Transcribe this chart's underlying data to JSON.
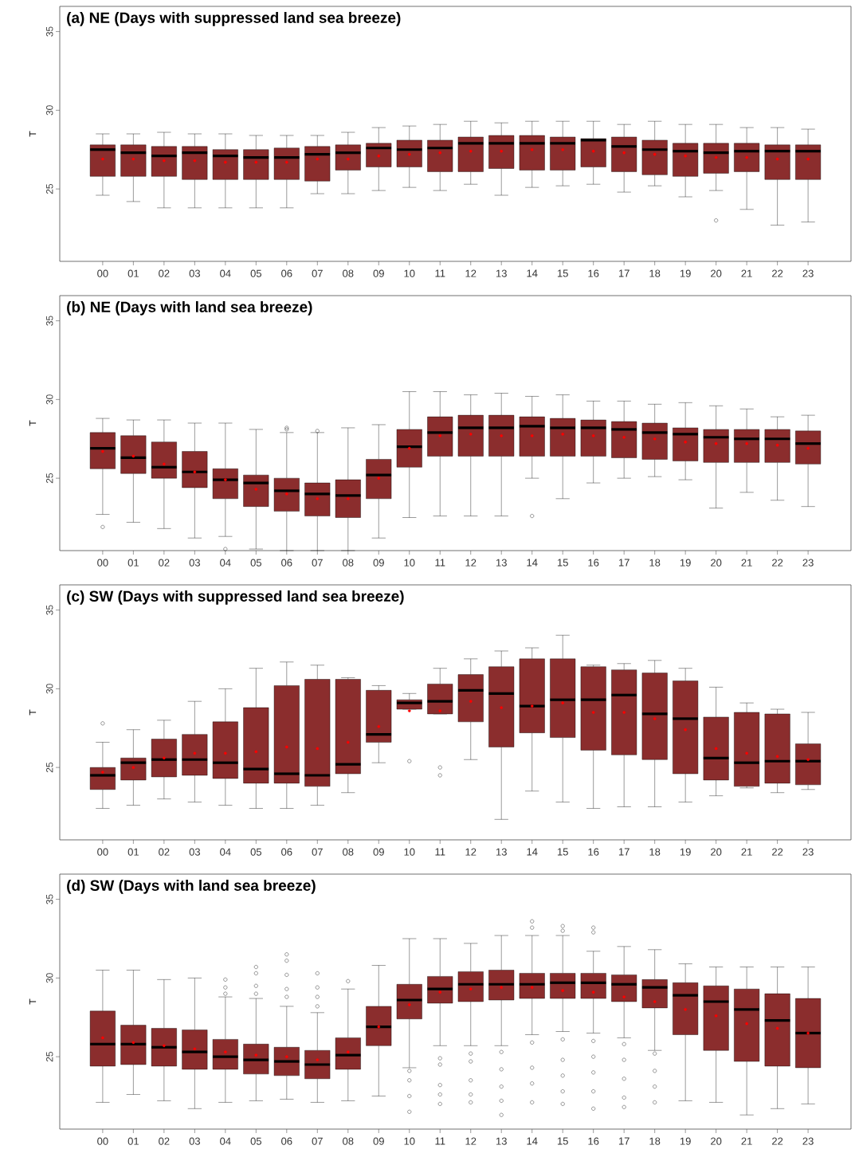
{
  "chart_data": [
    {
      "type": "box",
      "title": "(a) NE (Days with suppressed land sea breeze)",
      "ylabel": "T",
      "color": "#8b2d2d",
      "ylim": [
        20.4,
        36.6
      ],
      "yticks": [
        25,
        30,
        35
      ],
      "categories": [
        "00",
        "01",
        "02",
        "03",
        "04",
        "05",
        "06",
        "07",
        "08",
        "09",
        "10",
        "11",
        "12",
        "13",
        "14",
        "15",
        "16",
        "17",
        "18",
        "19",
        "20",
        "21",
        "22",
        "23"
      ],
      "boxes": [
        {
          "low": 24.6,
          "q1": 25.8,
          "median": 27.5,
          "q3": 27.8,
          "high": 28.5,
          "mean": 26.9
        },
        {
          "low": 24.2,
          "q1": 25.8,
          "median": 27.3,
          "q3": 27.8,
          "high": 28.5,
          "mean": 26.9
        },
        {
          "low": 23.8,
          "q1": 25.8,
          "median": 27.1,
          "q3": 27.7,
          "high": 28.6,
          "mean": 26.8
        },
        {
          "low": 23.8,
          "q1": 25.6,
          "median": 27.3,
          "q3": 27.7,
          "high": 28.5,
          "mean": 26.8
        },
        {
          "low": 23.8,
          "q1": 25.6,
          "median": 27.1,
          "q3": 27.5,
          "high": 28.5,
          "mean": 26.7
        },
        {
          "low": 23.8,
          "q1": 25.6,
          "median": 27.0,
          "q3": 27.5,
          "high": 28.4,
          "mean": 26.7
        },
        {
          "low": 23.8,
          "q1": 25.6,
          "median": 27.0,
          "q3": 27.6,
          "high": 28.4,
          "mean": 26.7
        },
        {
          "low": 24.7,
          "q1": 25.5,
          "median": 27.2,
          "q3": 27.7,
          "high": 28.4,
          "mean": 26.9
        },
        {
          "low": 24.7,
          "q1": 26.2,
          "median": 27.3,
          "q3": 27.8,
          "high": 28.6,
          "mean": 26.9
        },
        {
          "low": 24.9,
          "q1": 26.4,
          "median": 27.6,
          "q3": 27.9,
          "high": 28.9,
          "mean": 27.1
        },
        {
          "low": 25.1,
          "q1": 26.4,
          "median": 27.5,
          "q3": 28.1,
          "high": 29.0,
          "mean": 27.2
        },
        {
          "low": 24.9,
          "q1": 26.1,
          "median": 27.6,
          "q3": 28.1,
          "high": 29.1,
          "mean": 27.3
        },
        {
          "low": 25.3,
          "q1": 26.1,
          "median": 27.9,
          "q3": 28.3,
          "high": 29.3,
          "mean": 27.4
        },
        {
          "low": 24.6,
          "q1": 26.3,
          "median": 27.9,
          "q3": 28.4,
          "high": 29.2,
          "mean": 27.4
        },
        {
          "low": 25.1,
          "q1": 26.2,
          "median": 27.9,
          "q3": 28.4,
          "high": 29.3,
          "mean": 27.5
        },
        {
          "low": 25.2,
          "q1": 26.2,
          "median": 27.9,
          "q3": 28.3,
          "high": 29.3,
          "mean": 27.5
        },
        {
          "low": 25.3,
          "q1": 26.4,
          "median": 28.1,
          "q3": 28.2,
          "high": 29.3,
          "mean": 27.4
        },
        {
          "low": 24.8,
          "q1": 26.1,
          "median": 27.7,
          "q3": 28.3,
          "high": 29.1,
          "mean": 27.3
        },
        {
          "low": 25.2,
          "q1": 25.9,
          "median": 27.5,
          "q3": 28.1,
          "high": 29.3,
          "mean": 27.2
        },
        {
          "low": 24.5,
          "q1": 25.8,
          "median": 27.4,
          "q3": 27.9,
          "high": 29.1,
          "mean": 27.1
        },
        {
          "low": 24.9,
          "q1": 26.0,
          "median": 27.3,
          "q3": 27.9,
          "high": 29.1,
          "mean": 27.0,
          "outliers": [
            23.0
          ]
        },
        {
          "low": 23.7,
          "q1": 26.1,
          "median": 27.4,
          "q3": 27.9,
          "high": 28.9,
          "mean": 27.0
        },
        {
          "low": 22.7,
          "q1": 25.6,
          "median": 27.4,
          "q3": 27.8,
          "high": 28.9,
          "mean": 26.9
        },
        {
          "low": 22.9,
          "q1": 25.6,
          "median": 27.4,
          "q3": 27.8,
          "high": 28.8,
          "mean": 26.9
        }
      ]
    },
    {
      "type": "box",
      "title": "(b) NE (Days with land sea breeze)",
      "ylabel": "T",
      "color": "#8b2d2d",
      "ylim": [
        20.4,
        36.6
      ],
      "yticks": [
        25,
        30,
        35
      ],
      "categories": [
        "00",
        "01",
        "02",
        "03",
        "04",
        "05",
        "06",
        "07",
        "08",
        "09",
        "10",
        "11",
        "12",
        "13",
        "14",
        "15",
        "16",
        "17",
        "18",
        "19",
        "20",
        "21",
        "22",
        "23"
      ],
      "boxes": [
        {
          "low": 22.7,
          "q1": 25.6,
          "median": 26.9,
          "q3": 27.9,
          "high": 28.8,
          "mean": 26.7,
          "outliers": [
            21.9
          ]
        },
        {
          "low": 22.2,
          "q1": 25.3,
          "median": 26.3,
          "q3": 27.7,
          "high": 28.7,
          "mean": 26.4
        },
        {
          "low": 21.8,
          "q1": 25.0,
          "median": 25.7,
          "q3": 27.3,
          "high": 28.7,
          "mean": 25.9
        },
        {
          "low": 21.2,
          "q1": 24.4,
          "median": 25.4,
          "q3": 26.7,
          "high": 28.5,
          "mean": 25.4
        },
        {
          "low": 21.3,
          "q1": 23.7,
          "median": 24.9,
          "q3": 25.6,
          "high": 28.5,
          "mean": 24.9,
          "outliers": [
            20.5
          ]
        },
        {
          "low": 20.5,
          "q1": 23.2,
          "median": 24.7,
          "q3": 25.2,
          "high": 28.1,
          "mean": 24.3
        },
        {
          "low": 20.4,
          "q1": 22.9,
          "median": 24.2,
          "q3": 25.0,
          "high": 27.9,
          "mean": 24.0,
          "outliers": [
            28.1,
            28.2
          ]
        },
        {
          "low": 20.4,
          "q1": 22.6,
          "median": 24.0,
          "q3": 24.7,
          "high": 27.9,
          "mean": 23.7,
          "outliers": [
            28.0
          ]
        },
        {
          "low": 20.4,
          "q1": 22.5,
          "median": 23.9,
          "q3": 24.9,
          "high": 28.2,
          "mean": 23.7
        },
        {
          "low": 21.2,
          "q1": 23.7,
          "median": 25.2,
          "q3": 26.2,
          "high": 28.4,
          "mean": 25.0
        },
        {
          "low": 22.5,
          "q1": 25.7,
          "median": 27.0,
          "q3": 28.1,
          "high": 30.5,
          "mean": 26.9
        },
        {
          "low": 22.6,
          "q1": 26.4,
          "median": 27.9,
          "q3": 28.9,
          "high": 30.5,
          "mean": 27.7
        },
        {
          "low": 22.6,
          "q1": 26.4,
          "median": 28.2,
          "q3": 29.0,
          "high": 30.3,
          "mean": 27.8
        },
        {
          "low": 22.6,
          "q1": 26.4,
          "median": 28.2,
          "q3": 29.0,
          "high": 30.4,
          "mean": 27.7
        },
        {
          "low": 25.0,
          "q1": 26.4,
          "median": 28.3,
          "q3": 28.9,
          "high": 30.2,
          "mean": 27.7,
          "outliers": [
            22.6
          ]
        },
        {
          "low": 23.7,
          "q1": 26.4,
          "median": 28.2,
          "q3": 28.8,
          "high": 30.3,
          "mean": 27.8
        },
        {
          "low": 24.7,
          "q1": 26.4,
          "median": 28.2,
          "q3": 28.7,
          "high": 29.9,
          "mean": 27.7
        },
        {
          "low": 25.0,
          "q1": 26.3,
          "median": 28.1,
          "q3": 28.6,
          "high": 29.9,
          "mean": 27.6
        },
        {
          "low": 25.1,
          "q1": 26.2,
          "median": 27.9,
          "q3": 28.5,
          "high": 29.7,
          "mean": 27.5
        },
        {
          "low": 24.9,
          "q1": 26.1,
          "median": 27.8,
          "q3": 28.2,
          "high": 29.8,
          "mean": 27.3
        },
        {
          "low": 23.1,
          "q1": 26.0,
          "median": 27.6,
          "q3": 28.1,
          "high": 29.6,
          "mean": 27.2
        },
        {
          "low": 24.1,
          "q1": 26.0,
          "median": 27.5,
          "q3": 28.1,
          "high": 29.4,
          "mean": 27.2
        },
        {
          "low": 23.6,
          "q1": 26.0,
          "median": 27.5,
          "q3": 28.1,
          "high": 28.9,
          "mean": 27.1
        },
        {
          "low": 23.2,
          "q1": 25.9,
          "median": 27.2,
          "q3": 28.0,
          "high": 29.0,
          "mean": 26.9
        }
      ]
    },
    {
      "type": "box",
      "title": "(c) SW (Days with suppressed land sea breeze)",
      "ylabel": "T",
      "color": "#8b2d2d",
      "ylim": [
        20.4,
        36.6
      ],
      "yticks": [
        25,
        30,
        35
      ],
      "categories": [
        "00",
        "01",
        "02",
        "03",
        "04",
        "05",
        "06",
        "07",
        "08",
        "09",
        "10",
        "11",
        "12",
        "13",
        "14",
        "15",
        "16",
        "17",
        "18",
        "19",
        "20",
        "21",
        "22",
        "23"
      ],
      "boxes": [
        {
          "low": 22.4,
          "q1": 23.6,
          "median": 24.5,
          "q3": 25.0,
          "high": 26.6,
          "mean": 24.7,
          "outliers": [
            27.8
          ]
        },
        {
          "low": 22.6,
          "q1": 24.2,
          "median": 25.3,
          "q3": 25.6,
          "high": 27.4,
          "mean": 25.0
        },
        {
          "low": 23.0,
          "q1": 24.4,
          "median": 25.5,
          "q3": 26.8,
          "high": 28.0,
          "mean": 25.6
        },
        {
          "low": 22.8,
          "q1": 24.5,
          "median": 25.5,
          "q3": 27.1,
          "high": 29.2,
          "mean": 25.9
        },
        {
          "low": 22.6,
          "q1": 24.3,
          "median": 25.3,
          "q3": 27.9,
          "high": 30.0,
          "mean": 25.9
        },
        {
          "low": 22.4,
          "q1": 24.0,
          "median": 24.9,
          "q3": 28.8,
          "high": 31.3,
          "mean": 26.0
        },
        {
          "low": 22.4,
          "q1": 24.0,
          "median": 24.6,
          "q3": 30.2,
          "high": 31.7,
          "mean": 26.3
        },
        {
          "low": 22.6,
          "q1": 23.8,
          "median": 24.5,
          "q3": 30.6,
          "high": 31.5,
          "mean": 26.2
        },
        {
          "low": 23.4,
          "q1": 24.6,
          "median": 25.2,
          "q3": 30.6,
          "high": 30.7,
          "mean": 26.6
        },
        {
          "low": 25.3,
          "q1": 26.6,
          "median": 27.1,
          "q3": 29.9,
          "high": 30.2,
          "mean": 27.6
        },
        {
          "low": 28.7,
          "q1": 28.7,
          "median": 29.1,
          "q3": 29.3,
          "high": 29.7,
          "mean": 28.6,
          "outliers": [
            25.4
          ]
        },
        {
          "low": 28.4,
          "q1": 28.4,
          "median": 29.2,
          "q3": 30.3,
          "high": 31.3,
          "mean": 28.6,
          "outliers": [
            25.0,
            24.5
          ]
        },
        {
          "low": 25.5,
          "q1": 27.9,
          "median": 29.9,
          "q3": 30.9,
          "high": 31.9,
          "mean": 29.2
        },
        {
          "low": 21.7,
          "q1": 26.3,
          "median": 29.7,
          "q3": 31.4,
          "high": 32.4,
          "mean": 28.8
        },
        {
          "low": 23.5,
          "q1": 27.2,
          "median": 28.9,
          "q3": 31.9,
          "high": 32.6,
          "mean": 28.9
        },
        {
          "low": 22.8,
          "q1": 26.9,
          "median": 29.3,
          "q3": 31.9,
          "high": 33.4,
          "mean": 29.1
        },
        {
          "low": 22.4,
          "q1": 26.1,
          "median": 29.3,
          "q3": 31.4,
          "high": 31.5,
          "mean": 28.5
        },
        {
          "low": 22.5,
          "q1": 25.8,
          "median": 29.6,
          "q3": 31.2,
          "high": 31.6,
          "mean": 28.5
        },
        {
          "low": 22.5,
          "q1": 25.5,
          "median": 28.4,
          "q3": 31.0,
          "high": 31.8,
          "mean": 28.1
        },
        {
          "low": 22.8,
          "q1": 24.6,
          "median": 28.1,
          "q3": 30.5,
          "high": 31.3,
          "mean": 27.4
        },
        {
          "low": 23.2,
          "q1": 24.2,
          "median": 25.6,
          "q3": 28.2,
          "high": 30.1,
          "mean": 26.2
        },
        {
          "low": 23.7,
          "q1": 23.8,
          "median": 25.3,
          "q3": 28.5,
          "high": 29.1,
          "mean": 25.9
        },
        {
          "low": 23.4,
          "q1": 24.0,
          "median": 25.4,
          "q3": 28.4,
          "high": 28.7,
          "mean": 25.7
        },
        {
          "low": 23.6,
          "q1": 23.9,
          "median": 25.4,
          "q3": 26.5,
          "high": 28.5,
          "mean": 25.5
        }
      ]
    },
    {
      "type": "box",
      "title": "(d) SW (Days with land sea breeze)",
      "ylabel": "T",
      "color": "#8b2d2d",
      "ylim": [
        20.4,
        36.6
      ],
      "yticks": [
        25,
        30,
        35
      ],
      "categories": [
        "00",
        "01",
        "02",
        "03",
        "04",
        "05",
        "06",
        "07",
        "08",
        "09",
        "10",
        "11",
        "12",
        "13",
        "14",
        "15",
        "16",
        "17",
        "18",
        "19",
        "20",
        "21",
        "22",
        "23"
      ],
      "boxes": [
        {
          "low": 22.1,
          "q1": 24.4,
          "median": 25.8,
          "q3": 27.9,
          "high": 30.5,
          "mean": 26.2
        },
        {
          "low": 22.6,
          "q1": 24.5,
          "median": 25.8,
          "q3": 27.0,
          "high": 30.5,
          "mean": 25.9
        },
        {
          "low": 22.2,
          "q1": 24.4,
          "median": 25.6,
          "q3": 26.8,
          "high": 29.9,
          "mean": 25.7
        },
        {
          "low": 21.7,
          "q1": 24.2,
          "median": 25.3,
          "q3": 26.7,
          "high": 30.0,
          "mean": 25.5
        },
        {
          "low": 22.1,
          "q1": 24.2,
          "median": 25.0,
          "q3": 26.1,
          "high": 28.8,
          "mean": 25.3,
          "outliers": [
            29.0,
            29.4,
            29.9
          ]
        },
        {
          "low": 22.2,
          "q1": 23.9,
          "median": 24.8,
          "q3": 25.8,
          "high": 28.7,
          "mean": 25.1,
          "outliers": [
            29.0,
            29.5,
            30.3,
            30.7
          ]
        },
        {
          "low": 22.3,
          "q1": 23.8,
          "median": 24.7,
          "q3": 25.6,
          "high": 28.2,
          "mean": 25.0,
          "outliers": [
            28.8,
            29.3,
            30.2,
            31.1,
            31.5
          ]
        },
        {
          "low": 22.1,
          "q1": 23.6,
          "median": 24.5,
          "q3": 25.4,
          "high": 27.8,
          "mean": 24.8,
          "outliers": [
            28.2,
            28.8,
            29.4,
            30.3
          ]
        },
        {
          "low": 22.2,
          "q1": 24.2,
          "median": 25.1,
          "q3": 26.2,
          "high": 29.3,
          "mean": 25.3,
          "outliers": [
            29.8
          ]
        },
        {
          "low": 22.5,
          "q1": 25.7,
          "median": 26.9,
          "q3": 28.2,
          "high": 30.8,
          "mean": 26.9
        },
        {
          "low": 24.3,
          "q1": 27.4,
          "median": 28.6,
          "q3": 29.6,
          "high": 32.5,
          "mean": 28.3,
          "outliers": [
            24.1,
            23.5,
            22.5,
            21.5
          ]
        },
        {
          "low": 25.7,
          "q1": 28.4,
          "median": 29.3,
          "q3": 30.1,
          "high": 32.5,
          "mean": 29.1,
          "outliers": [
            24.9,
            24.5,
            23.2,
            22.6,
            22.0
          ]
        },
        {
          "low": 25.7,
          "q1": 28.5,
          "median": 29.6,
          "q3": 30.4,
          "high": 32.2,
          "mean": 29.3,
          "outliers": [
            25.2,
            24.7,
            23.5,
            22.6,
            22.1
          ]
        },
        {
          "low": 25.7,
          "q1": 28.6,
          "median": 29.6,
          "q3": 30.5,
          "high": 32.7,
          "mean": 29.4,
          "outliers": [
            25.3,
            24.2,
            23.1,
            22.2,
            21.3
          ]
        },
        {
          "low": 26.4,
          "q1": 28.7,
          "median": 29.6,
          "q3": 30.3,
          "high": 32.7,
          "mean": 29.4,
          "outliers": [
            33.6,
            33.2,
            25.9,
            24.3,
            23.3,
            22.1
          ]
        },
        {
          "low": 26.6,
          "q1": 28.7,
          "median": 29.7,
          "q3": 30.3,
          "high": 32.7,
          "mean": 29.2,
          "outliers": [
            33.3,
            33.0,
            26.1,
            24.8,
            23.8,
            22.8,
            22.0
          ]
        },
        {
          "low": 26.5,
          "q1": 28.7,
          "median": 29.7,
          "q3": 30.3,
          "high": 31.7,
          "mean": 29.1,
          "outliers": [
            33.2,
            32.9,
            26.0,
            25.0,
            24.0,
            22.8,
            21.7
          ]
        },
        {
          "low": 26.2,
          "q1": 28.5,
          "median": 29.6,
          "q3": 30.2,
          "high": 32.0,
          "mean": 28.8,
          "outliers": [
            25.8,
            24.8,
            23.6,
            22.4,
            21.8
          ]
        },
        {
          "low": 25.4,
          "q1": 28.1,
          "median": 29.4,
          "q3": 29.9,
          "high": 31.8,
          "mean": 28.5,
          "outliers": [
            25.2,
            24.1,
            23.1,
            22.1
          ]
        },
        {
          "low": 22.2,
          "q1": 26.4,
          "median": 28.9,
          "q3": 29.7,
          "high": 30.9,
          "mean": 28.0
        },
        {
          "low": 22.1,
          "q1": 25.4,
          "median": 28.5,
          "q3": 29.5,
          "high": 30.7,
          "mean": 27.6
        },
        {
          "low": 21.3,
          "q1": 24.7,
          "median": 28.0,
          "q3": 29.3,
          "high": 30.7,
          "mean": 27.1
        },
        {
          "low": 21.7,
          "q1": 24.4,
          "median": 27.3,
          "q3": 29.0,
          "high": 30.7,
          "mean": 26.8
        },
        {
          "low": 22.0,
          "q1": 24.3,
          "median": 26.5,
          "q3": 28.7,
          "high": 30.7,
          "mean": 26.5
        }
      ]
    }
  ]
}
